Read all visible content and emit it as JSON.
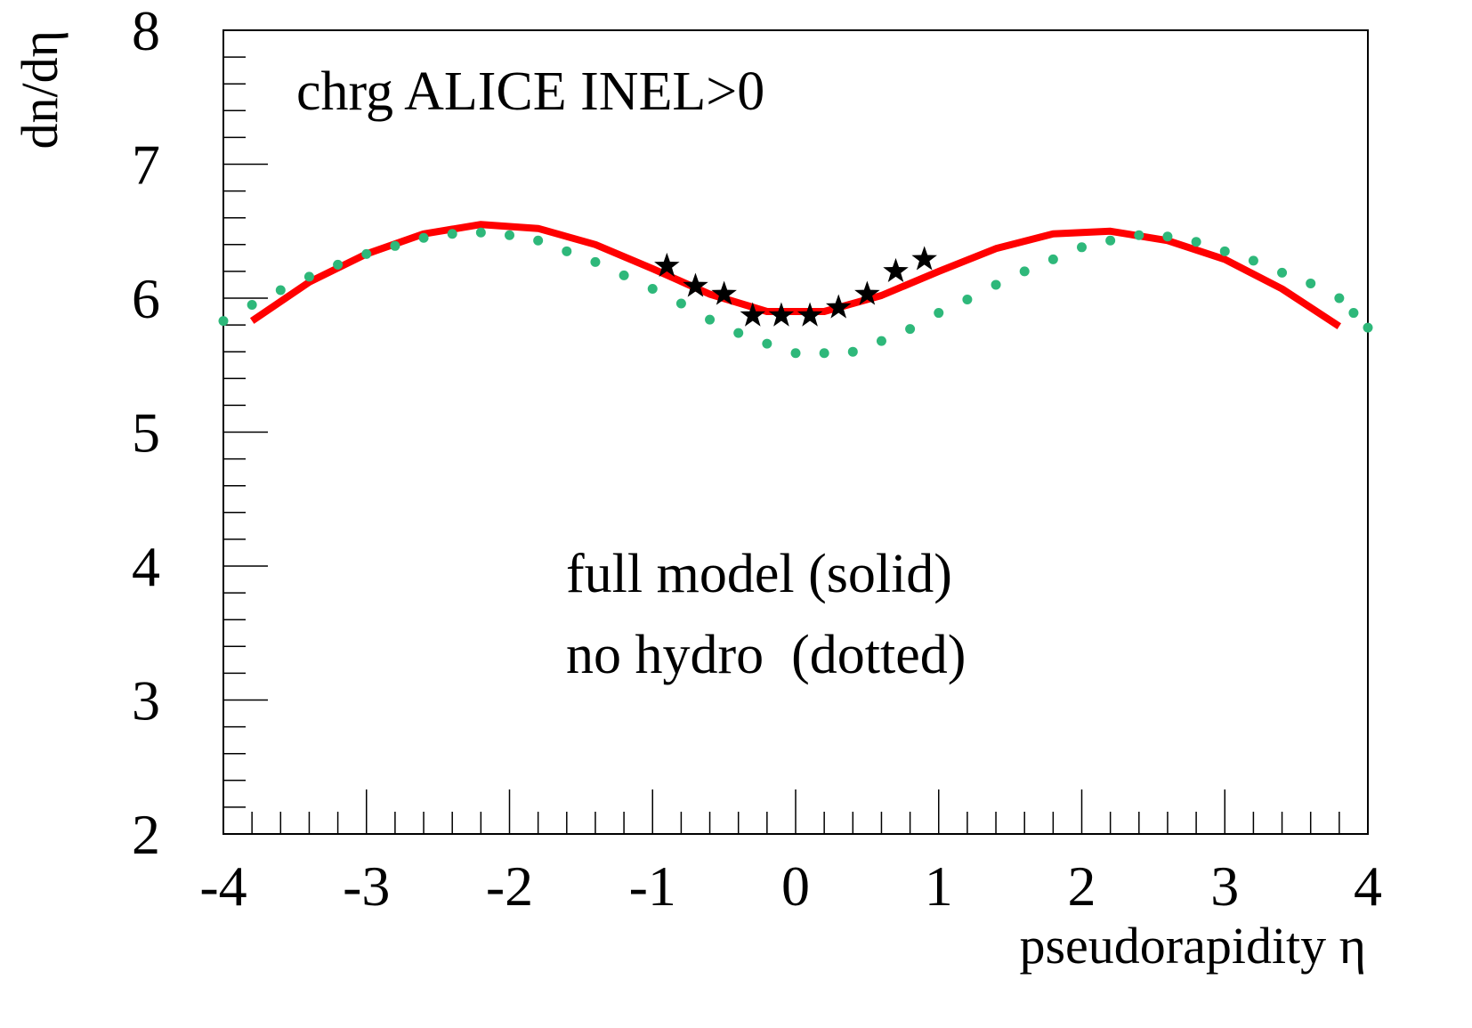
{
  "chart_data": {
    "type": "line",
    "title": "",
    "xlabel": "pseudorapidity η",
    "ylabel": "dn/dη",
    "xlim": [
      -4,
      4
    ],
    "ylim": [
      2,
      8
    ],
    "x_major_ticks": [
      -4,
      -3,
      -2,
      -1,
      0,
      1,
      2,
      3,
      4
    ],
    "y_major_ticks": [
      2,
      3,
      4,
      5,
      6,
      7,
      8
    ],
    "x_minor_step": 0.2,
    "y_minor_step": 0.2,
    "grid": false,
    "annotations": [
      {
        "text": "chrg ALICE INEL>0"
      },
      {
        "text": "full model (solid)"
      },
      {
        "text": "no hydro  (dotted)"
      }
    ],
    "series": [
      {
        "style": "solid",
        "color": "#ff0000",
        "x": [
          -3.8,
          -3.4,
          -3.0,
          -2.6,
          -2.2,
          -1.8,
          -1.4,
          -1.0,
          -0.6,
          -0.2,
          0.2,
          0.6,
          1.0,
          1.4,
          1.8,
          2.2,
          2.6,
          3.0,
          3.4,
          3.8
        ],
        "y": [
          5.83,
          6.12,
          6.33,
          6.48,
          6.55,
          6.52,
          6.4,
          6.22,
          6.03,
          5.9,
          5.9,
          6.02,
          6.2,
          6.37,
          6.48,
          6.5,
          6.43,
          6.29,
          6.07,
          5.79
        ]
      },
      {
        "style": "dotted",
        "color": "#2eb87a",
        "x": [
          -4.0,
          -3.8,
          -3.6,
          -3.4,
          -3.2,
          -3.0,
          -2.8,
          -2.6,
          -2.4,
          -2.2,
          -2.0,
          -1.8,
          -1.6,
          -1.4,
          -1.2,
          -1.0,
          -0.8,
          -0.6,
          -0.4,
          -0.2,
          0.0,
          0.2,
          0.4,
          0.6,
          0.8,
          1.0,
          1.2,
          1.4,
          1.6,
          1.8,
          2.0,
          2.2,
          2.4,
          2.6,
          2.8,
          3.0,
          3.2,
          3.4,
          3.6,
          3.8,
          3.9,
          4.0
        ],
        "y": [
          5.83,
          5.95,
          6.06,
          6.16,
          6.25,
          6.33,
          6.39,
          6.45,
          6.48,
          6.49,
          6.47,
          6.43,
          6.35,
          6.27,
          6.17,
          6.07,
          5.96,
          5.84,
          5.74,
          5.66,
          5.59,
          5.59,
          5.6,
          5.68,
          5.77,
          5.89,
          5.99,
          6.1,
          6.2,
          6.29,
          6.38,
          6.43,
          6.47,
          6.46,
          6.42,
          6.35,
          6.28,
          6.19,
          6.11,
          6.0,
          5.89,
          5.78
        ]
      },
      {
        "style": "markers",
        "marker": "star",
        "color": "#000000",
        "x": [
          -0.9,
          -0.7,
          -0.5,
          -0.3,
          -0.1,
          0.1,
          0.3,
          0.5,
          0.7,
          0.9
        ],
        "y": [
          6.24,
          6.09,
          6.03,
          5.87,
          5.87,
          5.87,
          5.93,
          6.03,
          6.2,
          6.29
        ]
      }
    ]
  }
}
